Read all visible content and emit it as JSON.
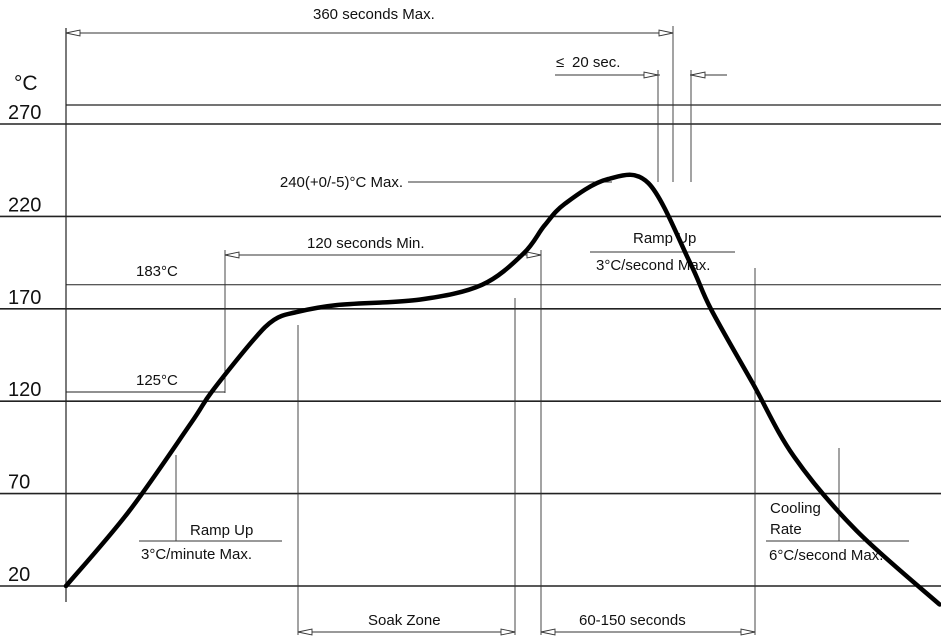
{
  "chart_data": {
    "type": "line",
    "title": "",
    "xlabel": "",
    "ylabel": "°C",
    "ylim": [
      20,
      270
    ],
    "yticks": [
      20,
      70,
      120,
      170,
      220,
      270
    ],
    "grid": true,
    "series": [
      {
        "x": [
          0,
          30,
          60,
          70,
          90,
          100,
          110,
          130,
          170,
          200,
          220,
          230,
          240,
          260,
          280,
          300,
          310,
          330,
          350,
          380,
          420
        ],
        "y": [
          20,
          60,
          108,
          125,
          153,
          164,
          168,
          172,
          175,
          183,
          200,
          215,
          227,
          240,
          238,
          195,
          170,
          130,
          90,
          50,
          10
        ]
      }
    ],
    "reference_lines": [
      {
        "y": 183,
        "label": "183°C"
      },
      {
        "y": 125,
        "label": "125°C"
      }
    ],
    "peak_label": "240(+0/-5)°C Max.",
    "annotations": {
      "total_time": "360 seconds Max.",
      "peak_time_prefix": "≤",
      "peak_time": "20 sec.",
      "preheat_time": "120 seconds Min.",
      "ramp_up_1": "Ramp Up",
      "ramp_up_1_rate": "3°C/minute Max.",
      "ramp_up_2": "Ramp Up",
      "ramp_up_2_rate": "3°C/second Max.",
      "cooling_1": "Cooling",
      "cooling_2": "Rate",
      "cooling_rate": "6°C/second Max.",
      "soak_zone": "Soak Zone",
      "liquidus_time": "60-150 seconds"
    }
  }
}
